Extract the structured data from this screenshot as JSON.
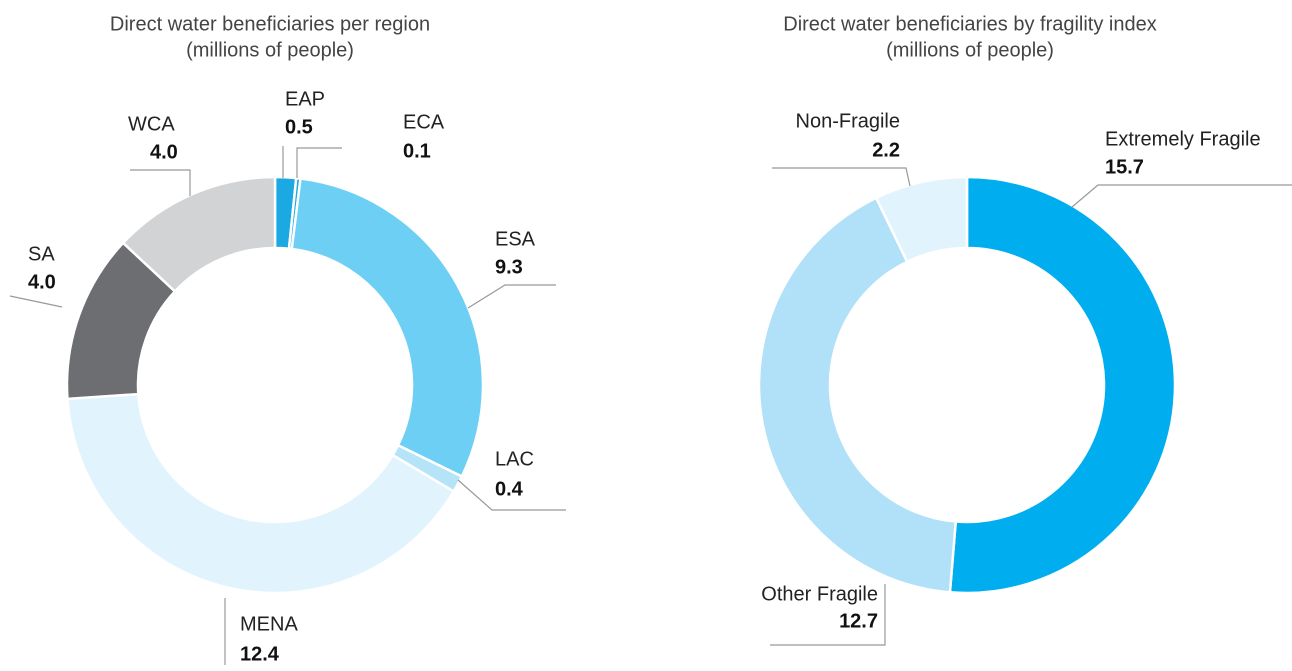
{
  "chart_data": [
    {
      "type": "donut",
      "title": "Direct water beneficiaries per region",
      "subtitle": "(millions of people)",
      "categories": [
        "EAP",
        "ECA",
        "ESA",
        "LAC",
        "MENA",
        "SA",
        "WCA"
      ],
      "values": [
        0.5,
        0.1,
        9.3,
        0.4,
        12.4,
        4.0,
        4.0
      ],
      "value_labels": [
        "0.5",
        "0.1",
        "9.3",
        "0.4",
        "12.4",
        "4.0",
        "4.0"
      ],
      "colors": [
        "#1ba8e3",
        "#1ba8e3",
        "#6ecff5",
        "#b5e3f8",
        "#e1f3fc",
        "#6d6e71",
        "#d1d3d4"
      ]
    },
    {
      "type": "donut",
      "title": "Direct water beneficiaries by fragility index",
      "subtitle": "(millions of people)",
      "categories": [
        "Extremely Fragile",
        "Other Fragile",
        "Non-Fragile"
      ],
      "values": [
        15.7,
        12.7,
        2.2
      ],
      "colors": [
        "#00aeef",
        "#b0e1f8",
        "#e1f3fc"
      ]
    }
  ]
}
